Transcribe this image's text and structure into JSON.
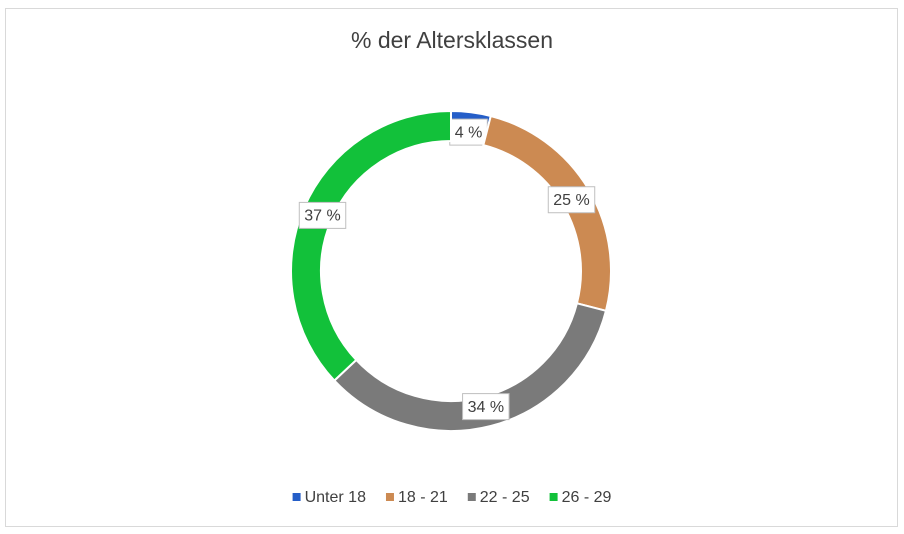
{
  "chart_data": {
    "type": "donut",
    "title": "% der Altersklassen",
    "categories": [
      "Unter 18",
      "18 - 21",
      "22 - 25",
      "26 - 29"
    ],
    "values": [
      4,
      25,
      34,
      37
    ],
    "value_labels": [
      "4 %",
      "25 %",
      "34 %",
      "37 %"
    ],
    "colors": [
      "#255ec8",
      "#cc8a52",
      "#7a7a7a",
      "#12c13a"
    ],
    "legend": "bottom"
  }
}
